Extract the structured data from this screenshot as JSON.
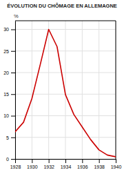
{
  "chart_data": {
    "type": "line",
    "title": "ÉVOLUTION DU CHÔMAGE EN ALLEMAGNE",
    "ylabel": "%",
    "x": [
      1928,
      1929,
      1930,
      1931,
      1932,
      1933,
      1934,
      1935,
      1936,
      1937,
      1938,
      1939,
      1940
    ],
    "values": [
      6.3,
      8.5,
      14.0,
      21.9,
      30.0,
      26.0,
      14.9,
      10.3,
      7.4,
      4.5,
      2.1,
      0.9,
      0.5
    ],
    "color": "#cc0000",
    "xlim": [
      1928,
      1940
    ],
    "ylim": [
      0,
      32
    ],
    "xticks": [
      1928,
      1930,
      1932,
      1934,
      1936,
      1938,
      1940
    ],
    "yticks": [
      0,
      5,
      10,
      15,
      20,
      25,
      30
    ],
    "grid": true
  }
}
